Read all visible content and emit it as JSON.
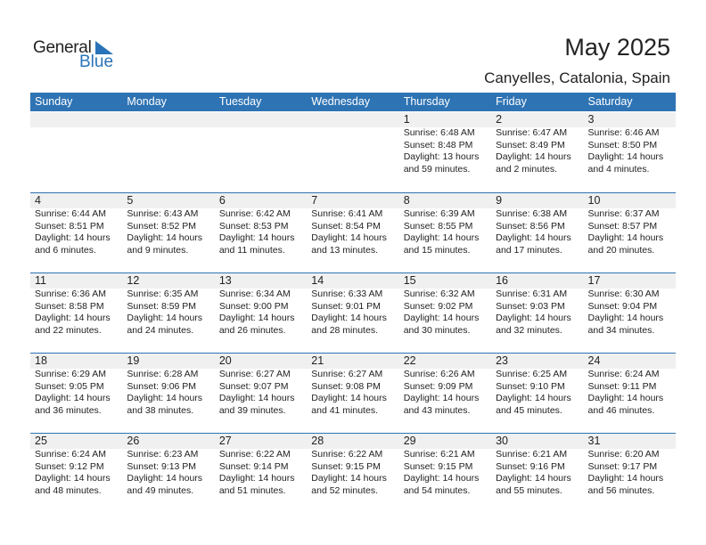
{
  "logo": {
    "text1": "General",
    "text2": "Blue"
  },
  "title": "May 2025",
  "location": "Canyelles, Catalonia, Spain",
  "weekdays": [
    "Sunday",
    "Monday",
    "Tuesday",
    "Wednesday",
    "Thursday",
    "Friday",
    "Saturday"
  ],
  "first_weekday_index": 4,
  "days": [
    {
      "d": "1",
      "sunrise": "Sunrise: 6:48 AM",
      "sunset": "Sunset: 8:48 PM",
      "dl1": "Daylight: 13 hours",
      "dl2": "and 59 minutes."
    },
    {
      "d": "2",
      "sunrise": "Sunrise: 6:47 AM",
      "sunset": "Sunset: 8:49 PM",
      "dl1": "Daylight: 14 hours",
      "dl2": "and 2 minutes."
    },
    {
      "d": "3",
      "sunrise": "Sunrise: 6:46 AM",
      "sunset": "Sunset: 8:50 PM",
      "dl1": "Daylight: 14 hours",
      "dl2": "and 4 minutes."
    },
    {
      "d": "4",
      "sunrise": "Sunrise: 6:44 AM",
      "sunset": "Sunset: 8:51 PM",
      "dl1": "Daylight: 14 hours",
      "dl2": "and 6 minutes."
    },
    {
      "d": "5",
      "sunrise": "Sunrise: 6:43 AM",
      "sunset": "Sunset: 8:52 PM",
      "dl1": "Daylight: 14 hours",
      "dl2": "and 9 minutes."
    },
    {
      "d": "6",
      "sunrise": "Sunrise: 6:42 AM",
      "sunset": "Sunset: 8:53 PM",
      "dl1": "Daylight: 14 hours",
      "dl2": "and 11 minutes."
    },
    {
      "d": "7",
      "sunrise": "Sunrise: 6:41 AM",
      "sunset": "Sunset: 8:54 PM",
      "dl1": "Daylight: 14 hours",
      "dl2": "and 13 minutes."
    },
    {
      "d": "8",
      "sunrise": "Sunrise: 6:39 AM",
      "sunset": "Sunset: 8:55 PM",
      "dl1": "Daylight: 14 hours",
      "dl2": "and 15 minutes."
    },
    {
      "d": "9",
      "sunrise": "Sunrise: 6:38 AM",
      "sunset": "Sunset: 8:56 PM",
      "dl1": "Daylight: 14 hours",
      "dl2": "and 17 minutes."
    },
    {
      "d": "10",
      "sunrise": "Sunrise: 6:37 AM",
      "sunset": "Sunset: 8:57 PM",
      "dl1": "Daylight: 14 hours",
      "dl2": "and 20 minutes."
    },
    {
      "d": "11",
      "sunrise": "Sunrise: 6:36 AM",
      "sunset": "Sunset: 8:58 PM",
      "dl1": "Daylight: 14 hours",
      "dl2": "and 22 minutes."
    },
    {
      "d": "12",
      "sunrise": "Sunrise: 6:35 AM",
      "sunset": "Sunset: 8:59 PM",
      "dl1": "Daylight: 14 hours",
      "dl2": "and 24 minutes."
    },
    {
      "d": "13",
      "sunrise": "Sunrise: 6:34 AM",
      "sunset": "Sunset: 9:00 PM",
      "dl1": "Daylight: 14 hours",
      "dl2": "and 26 minutes."
    },
    {
      "d": "14",
      "sunrise": "Sunrise: 6:33 AM",
      "sunset": "Sunset: 9:01 PM",
      "dl1": "Daylight: 14 hours",
      "dl2": "and 28 minutes."
    },
    {
      "d": "15",
      "sunrise": "Sunrise: 6:32 AM",
      "sunset": "Sunset: 9:02 PM",
      "dl1": "Daylight: 14 hours",
      "dl2": "and 30 minutes."
    },
    {
      "d": "16",
      "sunrise": "Sunrise: 6:31 AM",
      "sunset": "Sunset: 9:03 PM",
      "dl1": "Daylight: 14 hours",
      "dl2": "and 32 minutes."
    },
    {
      "d": "17",
      "sunrise": "Sunrise: 6:30 AM",
      "sunset": "Sunset: 9:04 PM",
      "dl1": "Daylight: 14 hours",
      "dl2": "and 34 minutes."
    },
    {
      "d": "18",
      "sunrise": "Sunrise: 6:29 AM",
      "sunset": "Sunset: 9:05 PM",
      "dl1": "Daylight: 14 hours",
      "dl2": "and 36 minutes."
    },
    {
      "d": "19",
      "sunrise": "Sunrise: 6:28 AM",
      "sunset": "Sunset: 9:06 PM",
      "dl1": "Daylight: 14 hours",
      "dl2": "and 38 minutes."
    },
    {
      "d": "20",
      "sunrise": "Sunrise: 6:27 AM",
      "sunset": "Sunset: 9:07 PM",
      "dl1": "Daylight: 14 hours",
      "dl2": "and 39 minutes."
    },
    {
      "d": "21",
      "sunrise": "Sunrise: 6:27 AM",
      "sunset": "Sunset: 9:08 PM",
      "dl1": "Daylight: 14 hours",
      "dl2": "and 41 minutes."
    },
    {
      "d": "22",
      "sunrise": "Sunrise: 6:26 AM",
      "sunset": "Sunset: 9:09 PM",
      "dl1": "Daylight: 14 hours",
      "dl2": "and 43 minutes."
    },
    {
      "d": "23",
      "sunrise": "Sunrise: 6:25 AM",
      "sunset": "Sunset: 9:10 PM",
      "dl1": "Daylight: 14 hours",
      "dl2": "and 45 minutes."
    },
    {
      "d": "24",
      "sunrise": "Sunrise: 6:24 AM",
      "sunset": "Sunset: 9:11 PM",
      "dl1": "Daylight: 14 hours",
      "dl2": "and 46 minutes."
    },
    {
      "d": "25",
      "sunrise": "Sunrise: 6:24 AM",
      "sunset": "Sunset: 9:12 PM",
      "dl1": "Daylight: 14 hours",
      "dl2": "and 48 minutes."
    },
    {
      "d": "26",
      "sunrise": "Sunrise: 6:23 AM",
      "sunset": "Sunset: 9:13 PM",
      "dl1": "Daylight: 14 hours",
      "dl2": "and 49 minutes."
    },
    {
      "d": "27",
      "sunrise": "Sunrise: 6:22 AM",
      "sunset": "Sunset: 9:14 PM",
      "dl1": "Daylight: 14 hours",
      "dl2": "and 51 minutes."
    },
    {
      "d": "28",
      "sunrise": "Sunrise: 6:22 AM",
      "sunset": "Sunset: 9:15 PM",
      "dl1": "Daylight: 14 hours",
      "dl2": "and 52 minutes."
    },
    {
      "d": "29",
      "sunrise": "Sunrise: 6:21 AM",
      "sunset": "Sunset: 9:15 PM",
      "dl1": "Daylight: 14 hours",
      "dl2": "and 54 minutes."
    },
    {
      "d": "30",
      "sunrise": "Sunrise: 6:21 AM",
      "sunset": "Sunset: 9:16 PM",
      "dl1": "Daylight: 14 hours",
      "dl2": "and 55 minutes."
    },
    {
      "d": "31",
      "sunrise": "Sunrise: 6:20 AM",
      "sunset": "Sunset: 9:17 PM",
      "dl1": "Daylight: 14 hours",
      "dl2": "and 56 minutes."
    }
  ],
  "colors": {
    "accent": "#2e73b4",
    "band": "#f0f0f0"
  }
}
